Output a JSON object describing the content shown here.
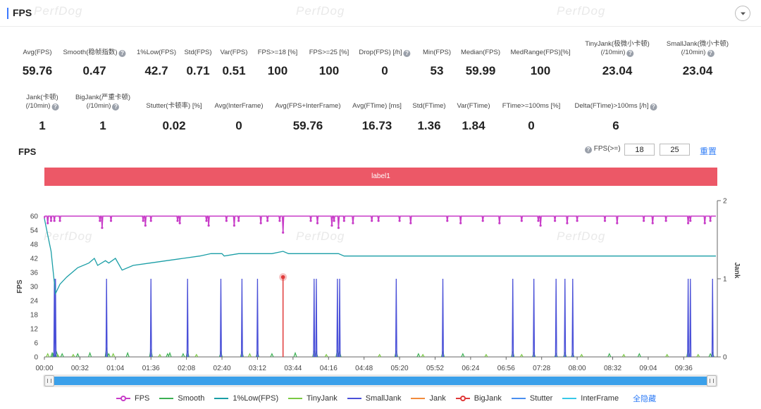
{
  "header": {
    "title": "FPS"
  },
  "watermark": "PerfDog",
  "stats_row1": [
    {
      "label": "Avg(FPS)",
      "value": "59.76",
      "help": false
    },
    {
      "label": "Smooth(稳帧指数)",
      "value": "0.47",
      "help": true
    },
    {
      "label": "1%Low(FPS)",
      "value": "42.7",
      "help": false
    },
    {
      "label": "Std(FPS)",
      "value": "0.71",
      "help": false
    },
    {
      "label": "Var(FPS)",
      "value": "0.51",
      "help": false
    },
    {
      "label": "FPS>=18 [%]",
      "value": "100",
      "help": false
    },
    {
      "label": "FPS>=25 [%]",
      "value": "100",
      "help": false
    },
    {
      "label": "Drop(FPS) [/h]",
      "value": "0",
      "help": true
    },
    {
      "label": "Min(FPS)",
      "value": "53",
      "help": false
    },
    {
      "label": "Median(FPS)",
      "value": "59.99",
      "help": false
    },
    {
      "label": "MedRange(FPS)[%]",
      "value": "100",
      "help": false
    },
    {
      "label": "TinyJank(极微小卡顿)",
      "label2": "(/10min)",
      "value": "23.04",
      "help": true
    },
    {
      "label": "SmallJank(微小卡顿)",
      "label2": "(/10min)",
      "value": "23.04",
      "help": true
    }
  ],
  "stats_row2": [
    {
      "label": "Jank(卡顿)",
      "label2": "(/10min)",
      "value": "1",
      "help": true
    },
    {
      "label": "BigJank(严重卡顿)",
      "label2": "(/10min)",
      "value": "1",
      "help": true
    },
    {
      "label": "Stutter(卡顿率) [%]",
      "value": "0.02",
      "help": false
    },
    {
      "label": "Avg(InterFrame)",
      "value": "0",
      "help": false
    },
    {
      "label": "Avg(FPS+InterFrame)",
      "value": "59.76",
      "help": false
    },
    {
      "label": "Avg(FTime) [ms]",
      "value": "16.73",
      "help": false
    },
    {
      "label": "Std(FTime)",
      "value": "1.36",
      "help": false
    },
    {
      "label": "Var(FTime)",
      "value": "1.84",
      "help": false
    },
    {
      "label": "FTime>=100ms [%]",
      "value": "0",
      "help": false
    },
    {
      "label": "Delta(FTime)>100ms [/h]",
      "value": "6",
      "help": true
    }
  ],
  "chart_header": {
    "title": "FPS",
    "threshold_label": "FPS(>=)",
    "threshold_1": "18",
    "threshold_2": "25",
    "reset_label": "重置"
  },
  "label_band": "label1",
  "legend_hide_all": "全隐藏",
  "colors": {
    "FPS": "#c83dc8",
    "Smooth": "#3cb053",
    "1%Low(FPS)": "#1a9ea6",
    "TinyJank": "#7ac943",
    "SmallJank": "#4a50d8",
    "Jank": "#f28b3c",
    "BigJank": "#e03a3a",
    "Stutter": "#4a8ff0",
    "InterFrame": "#38c8e8",
    "label_band": "#ec5867",
    "slider": "#3aa0ea",
    "link": "#2f7cf6"
  },
  "chart_data": {
    "type": "line",
    "title": "FPS",
    "xlabel": "",
    "ylabel": "FPS",
    "y2label": "Jank",
    "x_unit": "seconds",
    "x_ticks": [
      "00:00",
      "00:32",
      "01:04",
      "01:36",
      "02:08",
      "02:40",
      "03:12",
      "03:44",
      "04:16",
      "04:48",
      "05:20",
      "05:52",
      "06:24",
      "06:56",
      "07:28",
      "08:00",
      "08:32",
      "09:04",
      "09:36"
    ],
    "xlim": [
      0,
      605
    ],
    "ylim": [
      0,
      64
    ],
    "y_ticks": [
      0,
      6,
      12,
      18,
      24,
      30,
      36,
      42,
      48,
      54,
      60
    ],
    "y2lim": [
      0,
      2
    ],
    "y2_ticks": [
      0,
      1,
      2
    ],
    "grid": false,
    "legend_position": "bottom",
    "legend": [
      "FPS",
      "Smooth",
      "1%Low(FPS)",
      "TinyJank",
      "SmallJank",
      "Jank",
      "BigJank",
      "Stutter",
      "InterFrame"
    ],
    "series": [
      {
        "name": "FPS",
        "baseline": 60,
        "dips": [
          [
            0,
            59
          ],
          [
            3,
            57
          ],
          [
            6,
            58
          ],
          [
            9,
            58
          ],
          [
            14,
            58
          ],
          [
            50,
            58
          ],
          [
            52,
            55
          ],
          [
            60,
            58
          ],
          [
            89,
            58
          ],
          [
            91,
            56
          ],
          [
            96,
            58
          ],
          [
            120,
            58
          ],
          [
            122,
            57
          ],
          [
            146,
            58
          ],
          [
            148,
            56
          ],
          [
            164,
            58
          ],
          [
            171,
            56
          ],
          [
            175,
            58
          ],
          [
            195,
            57
          ],
          [
            201,
            58
          ],
          [
            212,
            58
          ],
          [
            215,
            53
          ],
          [
            240,
            58
          ],
          [
            246,
            57
          ],
          [
            259,
            56
          ],
          [
            261,
            58
          ],
          [
            265,
            55
          ],
          [
            270,
            58
          ],
          [
            278,
            57
          ],
          [
            295,
            58
          ],
          [
            301,
            58
          ],
          [
            320,
            58
          ],
          [
            330,
            57
          ],
          [
            363,
            58
          ],
          [
            375,
            57
          ],
          [
            395,
            58
          ],
          [
            410,
            57
          ],
          [
            430,
            58
          ],
          [
            445,
            58
          ],
          [
            447,
            56
          ],
          [
            460,
            58
          ],
          [
            471,
            57
          ],
          [
            480,
            58
          ],
          [
            505,
            58
          ],
          [
            516,
            57
          ],
          [
            540,
            58
          ],
          [
            548,
            57
          ],
          [
            560,
            58
          ],
          [
            580,
            57
          ],
          [
            582,
            58
          ],
          [
            595,
            57
          ],
          [
            600,
            58
          ]
        ]
      },
      {
        "name": "1%Low(FPS)",
        "points": [
          [
            0,
            59
          ],
          [
            3,
            52
          ],
          [
            6,
            45
          ],
          [
            8,
            36
          ],
          [
            10,
            27
          ],
          [
            14,
            31
          ],
          [
            20,
            34
          ],
          [
            30,
            38
          ],
          [
            40,
            40
          ],
          [
            45,
            42
          ],
          [
            48,
            39
          ],
          [
            55,
            41
          ],
          [
            58,
            40
          ],
          [
            64,
            42
          ],
          [
            70,
            37
          ],
          [
            80,
            39
          ],
          [
            95,
            40
          ],
          [
            110,
            41
          ],
          [
            125,
            42
          ],
          [
            140,
            43
          ],
          [
            150,
            44
          ],
          [
            160,
            44
          ],
          [
            162,
            43
          ],
          [
            175,
            44
          ],
          [
            190,
            44
          ],
          [
            205,
            44
          ],
          [
            215,
            45
          ],
          [
            220,
            44
          ],
          [
            240,
            44
          ],
          [
            255,
            44
          ],
          [
            265,
            44
          ],
          [
            270,
            43
          ],
          [
            290,
            43
          ],
          [
            310,
            43
          ],
          [
            330,
            43
          ],
          [
            350,
            43
          ],
          [
            370,
            43
          ],
          [
            390,
            43
          ],
          [
            410,
            43
          ],
          [
            430,
            43
          ],
          [
            450,
            43
          ],
          [
            470,
            43
          ],
          [
            490,
            43
          ],
          [
            510,
            43
          ],
          [
            530,
            43
          ],
          [
            550,
            43
          ],
          [
            570,
            43
          ],
          [
            590,
            43
          ],
          [
            605,
            43
          ]
        ]
      },
      {
        "name": "SmallJank",
        "axis": "y2",
        "events": [
          9,
          10,
          56,
          96,
          129,
          159,
          178,
          192,
          243,
          245,
          264,
          266,
          317,
          359,
          422,
          441,
          461,
          469,
          476,
          580,
          582,
          602
        ]
      },
      {
        "name": "Smooth",
        "axis": "y2",
        "events": [
          7,
          8,
          11,
          16,
          30,
          41,
          56,
          58,
          75,
          96,
          111,
          113,
          125,
          129,
          159,
          178,
          192,
          205,
          226,
          243,
          245,
          264,
          266,
          317,
          337,
          359,
          377,
          422,
          441,
          461,
          469,
          476,
          509,
          536,
          580,
          600,
          602
        ],
        "values": [
          0.05,
          0.04,
          0.06,
          0.04,
          0.04,
          0.05,
          0.12,
          0.04,
          0.05,
          0.1,
          0.04,
          0.05,
          0.04,
          0.08,
          0.06,
          0.07,
          0.06,
          0.04,
          0.05,
          0.08,
          0.06,
          0.09,
          0.07,
          0.08,
          0.04,
          0.07,
          0.04,
          0.07,
          0.05,
          0.04,
          0.05,
          0.04,
          0.04,
          0.04,
          0.09,
          0.04,
          0.05
        ]
      },
      {
        "name": "TinyJank",
        "axis": "y2",
        "events": [
          3,
          12,
          26,
          62,
          104,
          137,
          185,
          254,
          302,
          341,
          398,
          430,
          484,
          522,
          561,
          589
        ],
        "values": [
          0.04,
          0.03,
          0.03,
          0.04,
          0.03,
          0.03,
          0.04,
          0.03,
          0.03,
          0.03,
          0.03,
          0.03,
          0.03,
          0.03,
          0.03,
          0.03
        ]
      },
      {
        "name": "BigJank",
        "axis": "y",
        "events": [
          215
        ],
        "values": [
          34
        ]
      },
      {
        "name": "Jank",
        "axis": "y2",
        "values": []
      },
      {
        "name": "Stutter",
        "axis": "y2",
        "values": []
      },
      {
        "name": "InterFrame",
        "axis": "y",
        "values": []
      }
    ]
  }
}
